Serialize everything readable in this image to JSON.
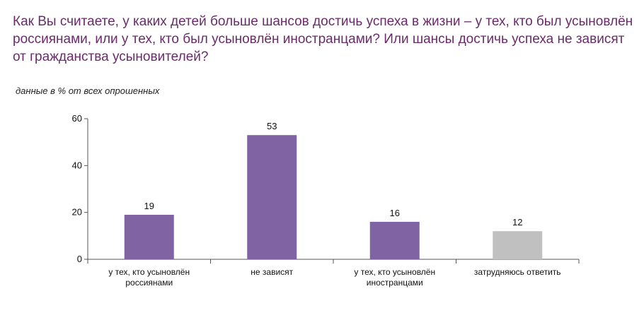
{
  "chart_data": {
    "type": "bar",
    "title": "Как Вы считаете, у каких детей больше шансов достичь успеха в жизни – у тех, кто был усыновлён россиянами, или у тех, кто был усыновлён иностранцами? Или шансы достичь успеха не зависят от гражданства усыновителей?",
    "subtitle": "данные в % от всех опрошенных",
    "categories": [
      [
        "у тех, кто усыновлён",
        "россиянами"
      ],
      [
        "не зависят"
      ],
      [
        "у тех, кто усыновлён",
        "иностранцами"
      ],
      [
        "затрудняюсь ответить"
      ]
    ],
    "values": [
      19,
      53,
      16,
      12
    ],
    "colors": [
      "#7f63a3",
      "#7f63a3",
      "#7f63a3",
      "#c0c0c0"
    ],
    "ylim": [
      0,
      60
    ],
    "yticks": [
      0,
      20,
      40,
      60
    ],
    "grid": false,
    "legend": "none"
  }
}
